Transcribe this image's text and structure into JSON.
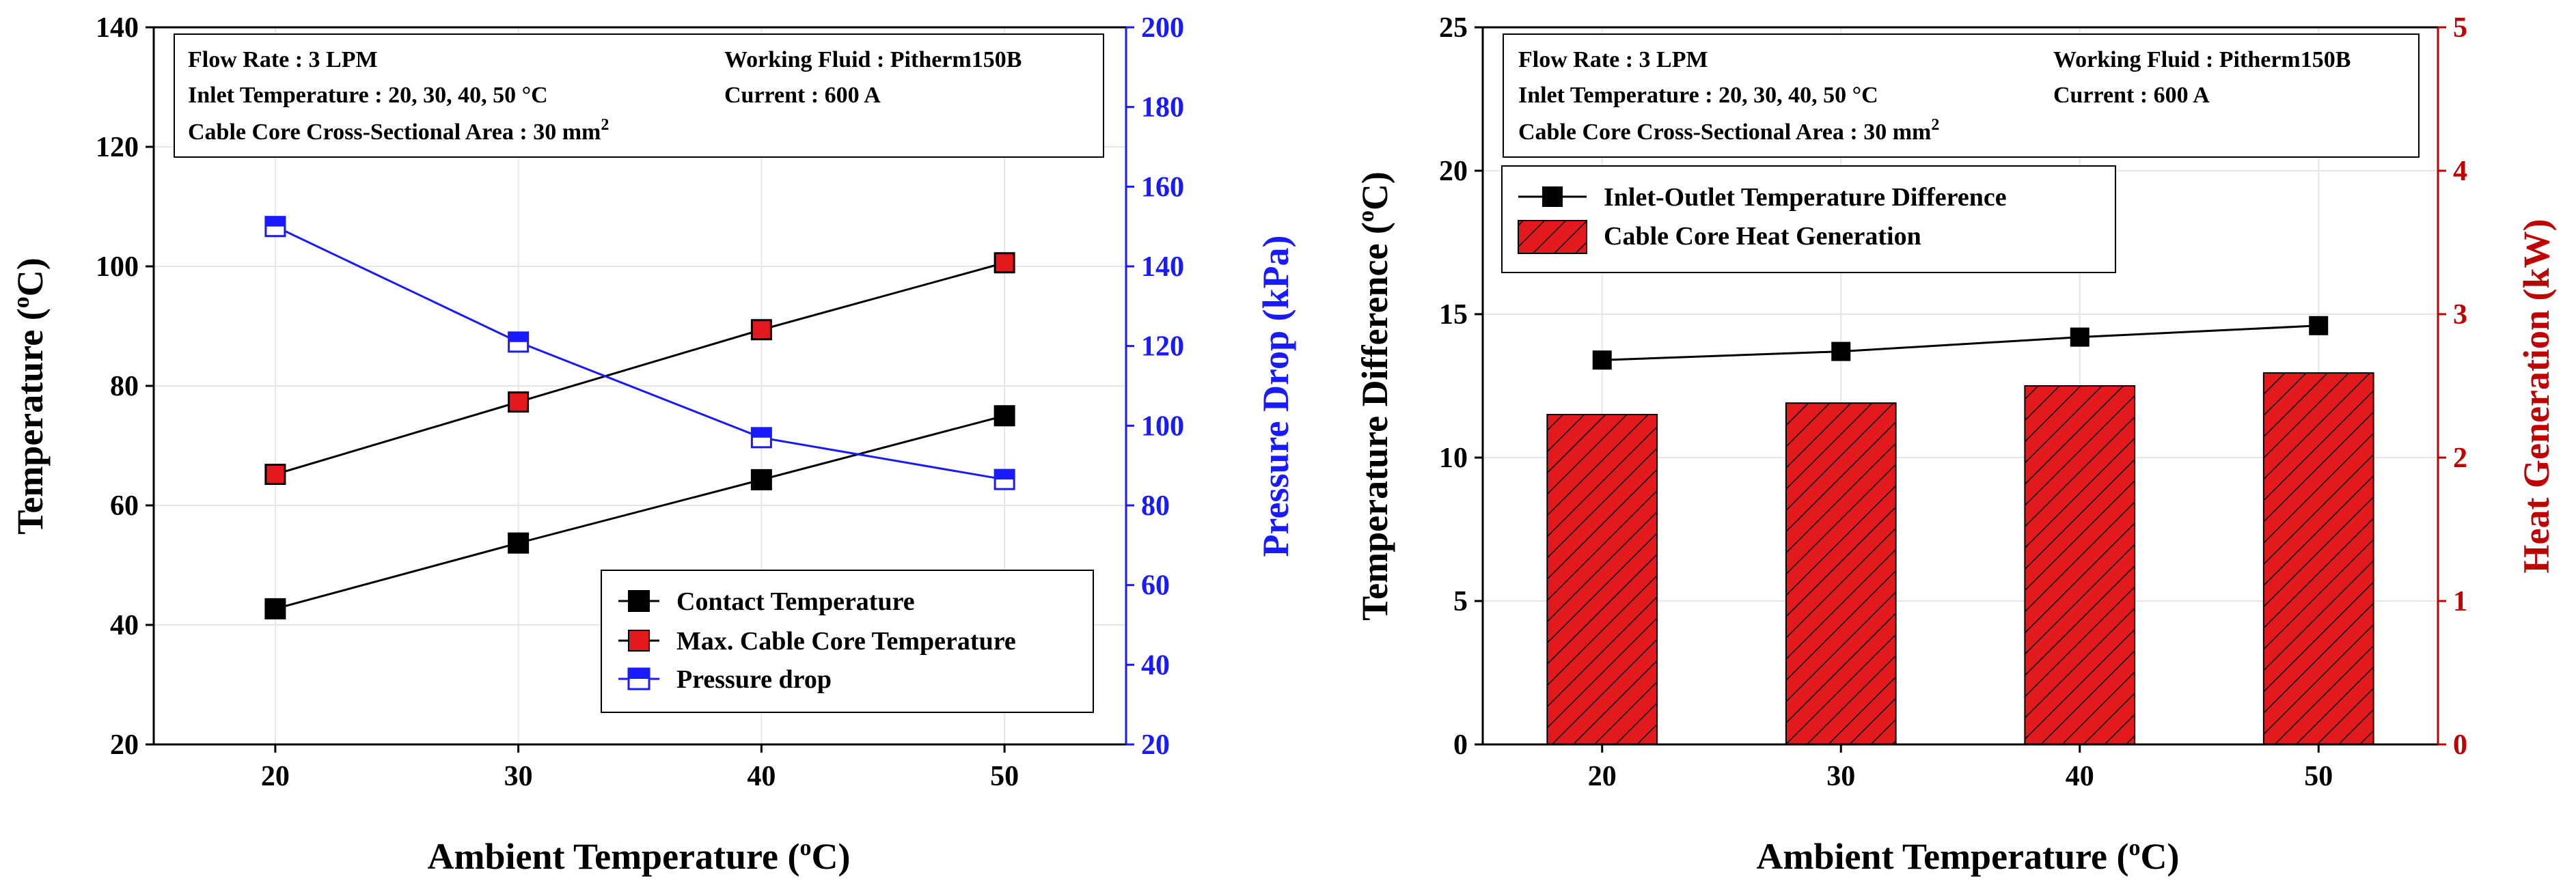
{
  "colors": {
    "black": "#000000",
    "red": "#e31a1c",
    "blue": "#1a1aff",
    "darkred": "#c00000",
    "grid": "#e6e6e6"
  },
  "chart_data": [
    {
      "type": "line",
      "title": "",
      "xlabel": "Ambient Temperature (oC)",
      "xlabel_main": "Ambient Temperature (",
      "xlabel_sup": "o",
      "xlabel_end": "C)",
      "ylabel_main": "Temperature (",
      "ylabel_sup": "o",
      "ylabel_end": "C)",
      "y2label": "Pressure Drop (kPa)",
      "x": [
        20,
        30,
        40,
        50
      ],
      "xlim": [
        15,
        55
      ],
      "ylim": [
        20,
        140
      ],
      "y2lim": [
        20,
        200
      ],
      "xticks": [
        "20",
        "30",
        "40",
        "50"
      ],
      "yticks": [
        "20",
        "40",
        "60",
        "80",
        "100",
        "120",
        "140"
      ],
      "y2ticks": [
        "20",
        "40",
        "60",
        "80",
        "100",
        "120",
        "140",
        "160",
        "180",
        "200"
      ],
      "series": [
        {
          "name": "Contact Temperature",
          "axis": "left",
          "values": [
            42.7,
            53.7,
            64.3,
            75.0
          ]
        },
        {
          "name": "Max. Cable Core Temperature",
          "axis": "left",
          "values": [
            65.2,
            77.3,
            89.4,
            100.6
          ]
        },
        {
          "name": "Pressure drop",
          "axis": "right",
          "values": [
            150.0,
            121.0,
            97.0,
            86.5
          ]
        }
      ],
      "info": {
        "flow_rate": "Flow Rate : 3 LPM",
        "working_fluid": "Working Fluid : Pitherm150B",
        "inlet_temperature": "Inlet Temperature : 20, 30, 40, 50 °C",
        "current": "Current : 600 A",
        "cross_section_main": "Cable Core Cross-Sectional Area : 30 mm",
        "cross_section_sup": "2"
      },
      "legend": "bottom-right"
    },
    {
      "type": "bar",
      "title": "",
      "xlabel": "Ambient Temperature (oC)",
      "xlabel_main": "Ambient Temperature (",
      "xlabel_sup": "o",
      "xlabel_end": "C)",
      "ylabel_main": "Temperature Difference (",
      "ylabel_sup": "o",
      "ylabel_end": "C)",
      "y2label": "Heat Generation (kW)",
      "categories": [
        "20",
        "30",
        "40",
        "50"
      ],
      "xlim": [
        0,
        4
      ],
      "ylim": [
        0,
        25
      ],
      "y2lim": [
        0,
        5
      ],
      "yticks": [
        "0",
        "5",
        "10",
        "15",
        "20",
        "25"
      ],
      "y2ticks": [
        "0",
        "1",
        "2",
        "3",
        "4",
        "5"
      ],
      "series": [
        {
          "name": "Inlet-Outlet Temperature Difference",
          "type": "line",
          "axis": "left",
          "values": [
            13.4,
            13.7,
            14.2,
            14.6
          ]
        },
        {
          "name": "Cable Core Heat Generation",
          "type": "bar",
          "axis": "right",
          "values": [
            2.3,
            2.38,
            2.5,
            2.59
          ]
        }
      ],
      "info": {
        "flow_rate": "Flow Rate : 3 LPM",
        "working_fluid": "Working Fluid : Pitherm150B",
        "inlet_temperature": "Inlet Temperature : 20, 30, 40, 50 °C",
        "current": "Current : 600 A",
        "cross_section_main": "Cable Core Cross-Sectional Area : 30 mm",
        "cross_section_sup": "2"
      },
      "legend": "top-left"
    }
  ]
}
